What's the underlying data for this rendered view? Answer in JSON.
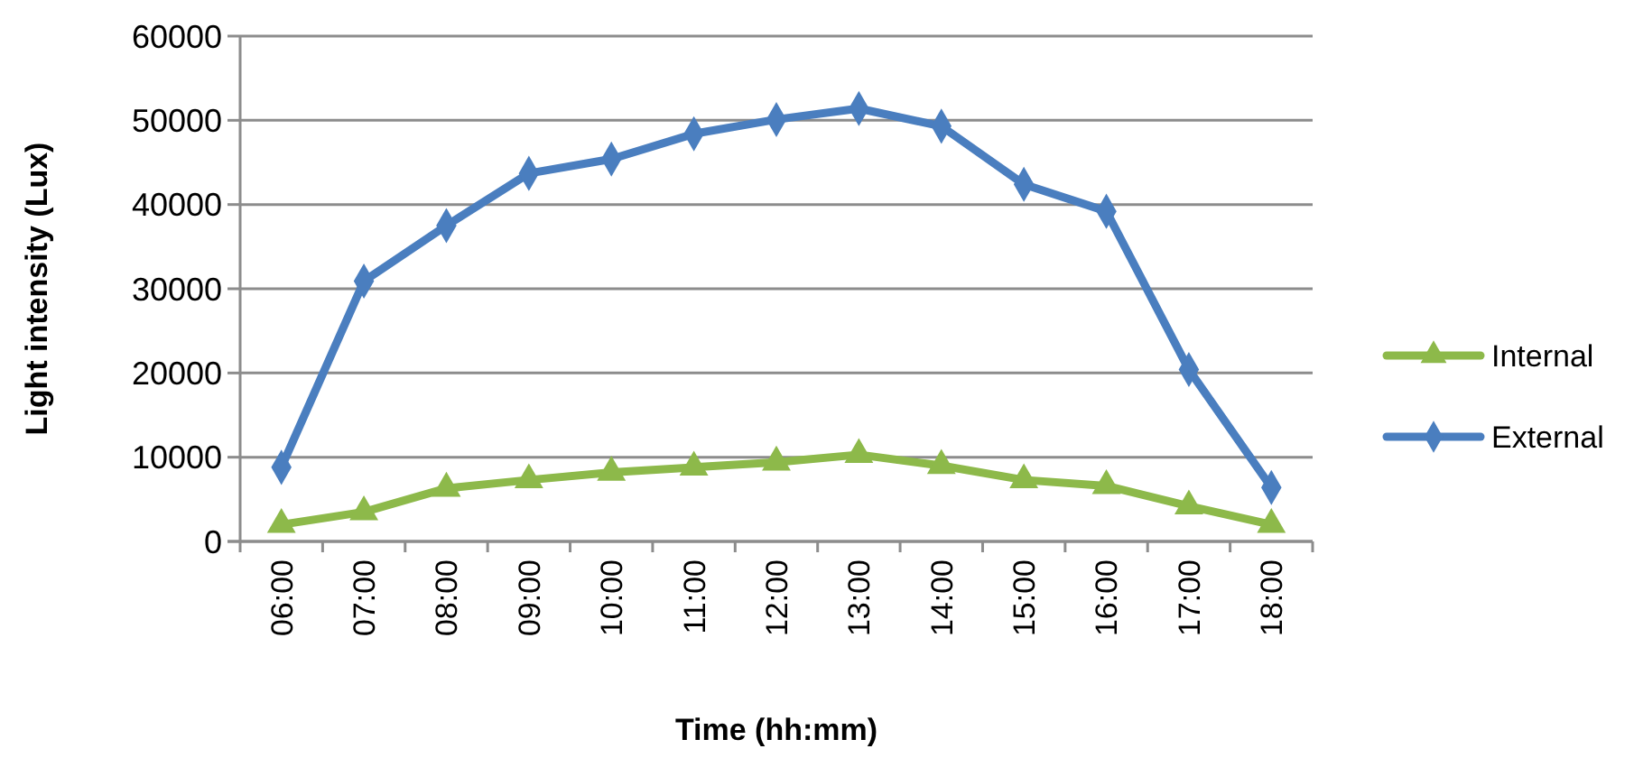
{
  "chart_data": {
    "type": "line",
    "xlabel": "Time (hh:mm)",
    "ylabel": "Light intensity (Lux)",
    "categories": [
      "06:00",
      "07:00",
      "08:00",
      "09:00",
      "10:00",
      "11:00",
      "12:00",
      "13:00",
      "14:00",
      "15:00",
      "16:00",
      "17:00",
      "18:00"
    ],
    "series": [
      {
        "name": "Internal",
        "color": "#8db94a",
        "marker": "triangle",
        "values": [
          2000,
          3500,
          6300,
          7300,
          8200,
          8800,
          9400,
          10300,
          9000,
          7300,
          6600,
          4200,
          2000
        ]
      },
      {
        "name": "External",
        "color": "#4a7ebf",
        "marker": "diamond",
        "values": [
          8800,
          30900,
          37500,
          43700,
          45400,
          48400,
          50100,
          51400,
          49300,
          42400,
          39200,
          20400,
          6400
        ]
      }
    ],
    "ylim": [
      0,
      60000
    ],
    "yticks": [
      0,
      10000,
      20000,
      30000,
      40000,
      50000,
      60000
    ],
    "grid": "y",
    "legend": "right"
  }
}
